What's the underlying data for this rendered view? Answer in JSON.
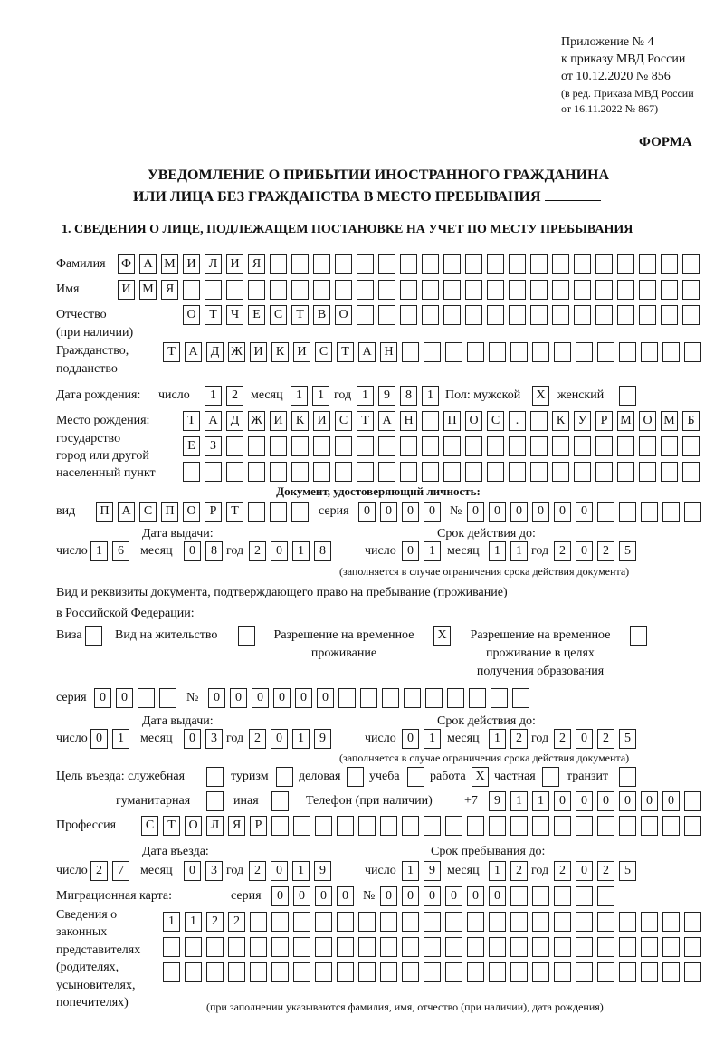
{
  "header": {
    "appendix": "Приложение № 4",
    "order": "к приказу МВД России",
    "order_date": "от 10.12.2020 № 856",
    "edition1": "(в ред. Приказа МВД России",
    "edition2": "от 16.11.2022 № 867)",
    "form": "ФОРМА",
    "title1": "УВЕДОМЛЕНИЕ О ПРИБЫТИИ ИНОСТРАННОГО ГРАЖДАНИНА",
    "title2": "ИЛИ ЛИЦА БЕЗ ГРАЖДАНСТВА В МЕСТО ПРЕБЫВАНИЯ",
    "section1": "1. СВЕДЕНИЯ О ЛИЦЕ, ПОДЛЕЖАЩЕМ ПОСТАНОВКЕ НА УЧЕТ ПО МЕСТУ ПРЕБЫВАНИЯ"
  },
  "labels": {
    "surname": "Фамилия",
    "name": "Имя",
    "patronymic1": "Отчество",
    "patronymic2": "(при наличии)",
    "citizenship1": "Гражданство,",
    "citizenship2": "подданство",
    "birth_date": "Дата рождения:",
    "day": "число",
    "month": "месяц",
    "year": "год",
    "sex": "Пол: мужской",
    "female": "женский",
    "birthplace1": "Место рождения:",
    "birthplace2": "государство",
    "birthplace3": "город или другой",
    "birthplace4": "населенный пункт",
    "id_doc": "Документ, удостоверяющий личность:",
    "kind": "вид",
    "series": "серия",
    "number": "№",
    "issue_date": "Дата выдачи:",
    "valid_until": "Срок действия до:",
    "valid_note": "(заполняется в случае ограничения срока действия документа)",
    "right_doc1": "Вид и реквизиты документа, подтверждающего право на пребывание (проживание)",
    "right_doc2": "в Российской Федерации:",
    "visa": "Виза",
    "residence": "Вид на жительство",
    "temp1": "Разрешение на временное",
    "temp2": "проживание",
    "edu1": "Разрешение на временное",
    "edu2": "проживание в целях",
    "edu3": "получения образования",
    "purpose": "Цель въезда: служебная",
    "tourism": "туризм",
    "business": "деловая",
    "study": "учеба",
    "work": "работа",
    "private": "частная",
    "transit": "транзит",
    "humanitarian": "гуманитарная",
    "other": "иная",
    "phone": "Телефон (при наличии)",
    "phone_prefix": "+7",
    "profession": "Профессия",
    "entry_date": "Дата въезда:",
    "stay_until": "Срок пребывания до:",
    "migration_card": "Миграционная карта:",
    "reps1": "Сведения о",
    "reps2": "законных",
    "reps3": "представителях",
    "reps4": "(родителях,",
    "reps5": "усыновителях,",
    "reps6": "попечителях)",
    "reps_note": "(при заполнении указываются фамилия, имя, отчество (при наличии), дата рождения)"
  },
  "fields": {
    "surname": [
      "Ф",
      "А",
      "М",
      "И",
      "Л",
      "И",
      "Я",
      "",
      "",
      "",
      "",
      "",
      "",
      "",
      "",
      "",
      "",
      "",
      "",
      "",
      "",
      "",
      "",
      "",
      "",
      "",
      ""
    ],
    "name": [
      "И",
      "М",
      "Я",
      "",
      "",
      "",
      "",
      "",
      "",
      "",
      "",
      "",
      "",
      "",
      "",
      "",
      "",
      "",
      "",
      "",
      "",
      "",
      "",
      "",
      "",
      "",
      ""
    ],
    "patronymic": [
      "О",
      "Т",
      "Ч",
      "Е",
      "С",
      "Т",
      "В",
      "О",
      "",
      "",
      "",
      "",
      "",
      "",
      "",
      "",
      "",
      "",
      "",
      "",
      "",
      "",
      "",
      ""
    ],
    "citizenship": [
      "Т",
      "А",
      "Д",
      "Ж",
      "И",
      "К",
      "И",
      "С",
      "Т",
      "А",
      "Н",
      "",
      "",
      "",
      "",
      "",
      "",
      "",
      "",
      "",
      "",
      "",
      "",
      "",
      ""
    ],
    "birth_day": [
      "1",
      "2"
    ],
    "birth_month": [
      "1",
      "1"
    ],
    "birth_year": [
      "1",
      "9",
      "8",
      "1"
    ],
    "sex_male": [
      "X"
    ],
    "sex_female": [
      ""
    ],
    "birthplace_1": [
      "Т",
      "А",
      "Д",
      "Ж",
      "И",
      "К",
      "И",
      "С",
      "Т",
      "А",
      "Н",
      "",
      "П",
      "О",
      "С",
      ".",
      "",
      "К",
      "У",
      "Р",
      "М",
      "О",
      "М",
      "Б"
    ],
    "birthplace_2": [
      "Е",
      "З",
      "",
      "",
      "",
      "",
      "",
      "",
      "",
      "",
      "",
      "",
      "",
      "",
      "",
      "",
      "",
      "",
      "",
      "",
      "",
      "",
      "",
      ""
    ],
    "birthplace_3": [
      "",
      "",
      "",
      "",
      "",
      "",
      "",
      "",
      "",
      "",
      "",
      "",
      "",
      "",
      "",
      "",
      "",
      "",
      "",
      "",
      "",
      "",
      "",
      ""
    ],
    "doc_kind": [
      "П",
      "А",
      "С",
      "П",
      "О",
      "Р",
      "Т",
      "",
      "",
      ""
    ],
    "doc_series": [
      "0",
      "0",
      "0",
      "0"
    ],
    "doc_number": [
      "0",
      "0",
      "0",
      "0",
      "0",
      "0",
      "",
      "",
      "",
      "",
      ""
    ],
    "doc_issue_day": [
      "1",
      "6"
    ],
    "doc_issue_month": [
      "0",
      "8"
    ],
    "doc_issue_year": [
      "2",
      "0",
      "1",
      "8"
    ],
    "doc_valid_day": [
      "0",
      "1"
    ],
    "doc_valid_month": [
      "1",
      "1"
    ],
    "doc_valid_year": [
      "2",
      "0",
      "2",
      "5"
    ],
    "visa": [
      ""
    ],
    "residence": [
      ""
    ],
    "temp_residence": [
      "X"
    ],
    "edu_residence": [
      ""
    ],
    "right_series": [
      "0",
      "0",
      "",
      ""
    ],
    "right_number": [
      "0",
      "0",
      "0",
      "0",
      "0",
      "0",
      "",
      "",
      "",
      "",
      "",
      "",
      "",
      "",
      ""
    ],
    "right_issue_day": [
      "0",
      "1"
    ],
    "right_issue_month": [
      "0",
      "3"
    ],
    "right_issue_year": [
      "2",
      "0",
      "1",
      "9"
    ],
    "right_valid_day": [
      "0",
      "1"
    ],
    "right_valid_month": [
      "1",
      "2"
    ],
    "right_valid_year": [
      "2",
      "0",
      "2",
      "5"
    ],
    "p_official": [
      ""
    ],
    "p_tourism": [
      ""
    ],
    "p_business": [
      ""
    ],
    "p_study": [
      ""
    ],
    "p_work": [
      "X"
    ],
    "p_private": [
      ""
    ],
    "p_transit": [
      ""
    ],
    "p_humanitarian": [
      ""
    ],
    "p_other": [
      ""
    ],
    "phone": [
      "9",
      "1",
      "1",
      "0",
      "0",
      "0",
      "0",
      "0",
      "0",
      ""
    ],
    "profession": [
      "С",
      "Т",
      "О",
      "Л",
      "Я",
      "Р",
      "",
      "",
      "",
      "",
      "",
      "",
      "",
      "",
      "",
      "",
      "",
      "",
      "",
      "",
      "",
      "",
      "",
      "",
      "",
      ""
    ],
    "entry_day": [
      "2",
      "7"
    ],
    "entry_month": [
      "0",
      "3"
    ],
    "entry_year": [
      "2",
      "0",
      "1",
      "9"
    ],
    "stay_day": [
      "1",
      "9"
    ],
    "stay_month": [
      "1",
      "2"
    ],
    "stay_year": [
      "2",
      "0",
      "2",
      "5"
    ],
    "mc_series": [
      "0",
      "0",
      "0",
      "0"
    ],
    "mc_number": [
      "0",
      "0",
      "0",
      "0",
      "0",
      "0",
      "",
      "",
      "",
      "",
      ""
    ],
    "reps_1": [
      "1",
      "1",
      "2",
      "2",
      "",
      "",
      "",
      "",
      "",
      "",
      "",
      "",
      "",
      "",
      "",
      "",
      "",
      "",
      "",
      "",
      "",
      "",
      "",
      "",
      ""
    ],
    "reps_2": [
      "",
      "",
      "",
      "",
      "",
      "",
      "",
      "",
      "",
      "",
      "",
      "",
      "",
      "",
      "",
      "",
      "",
      "",
      "",
      "",
      "",
      "",
      "",
      "",
      ""
    ],
    "reps_3": [
      "",
      "",
      "",
      "",
      "",
      "",
      "",
      "",
      "",
      "",
      "",
      "",
      "",
      "",
      "",
      "",
      "",
      "",
      "",
      "",
      "",
      "",
      "",
      "",
      ""
    ]
  }
}
